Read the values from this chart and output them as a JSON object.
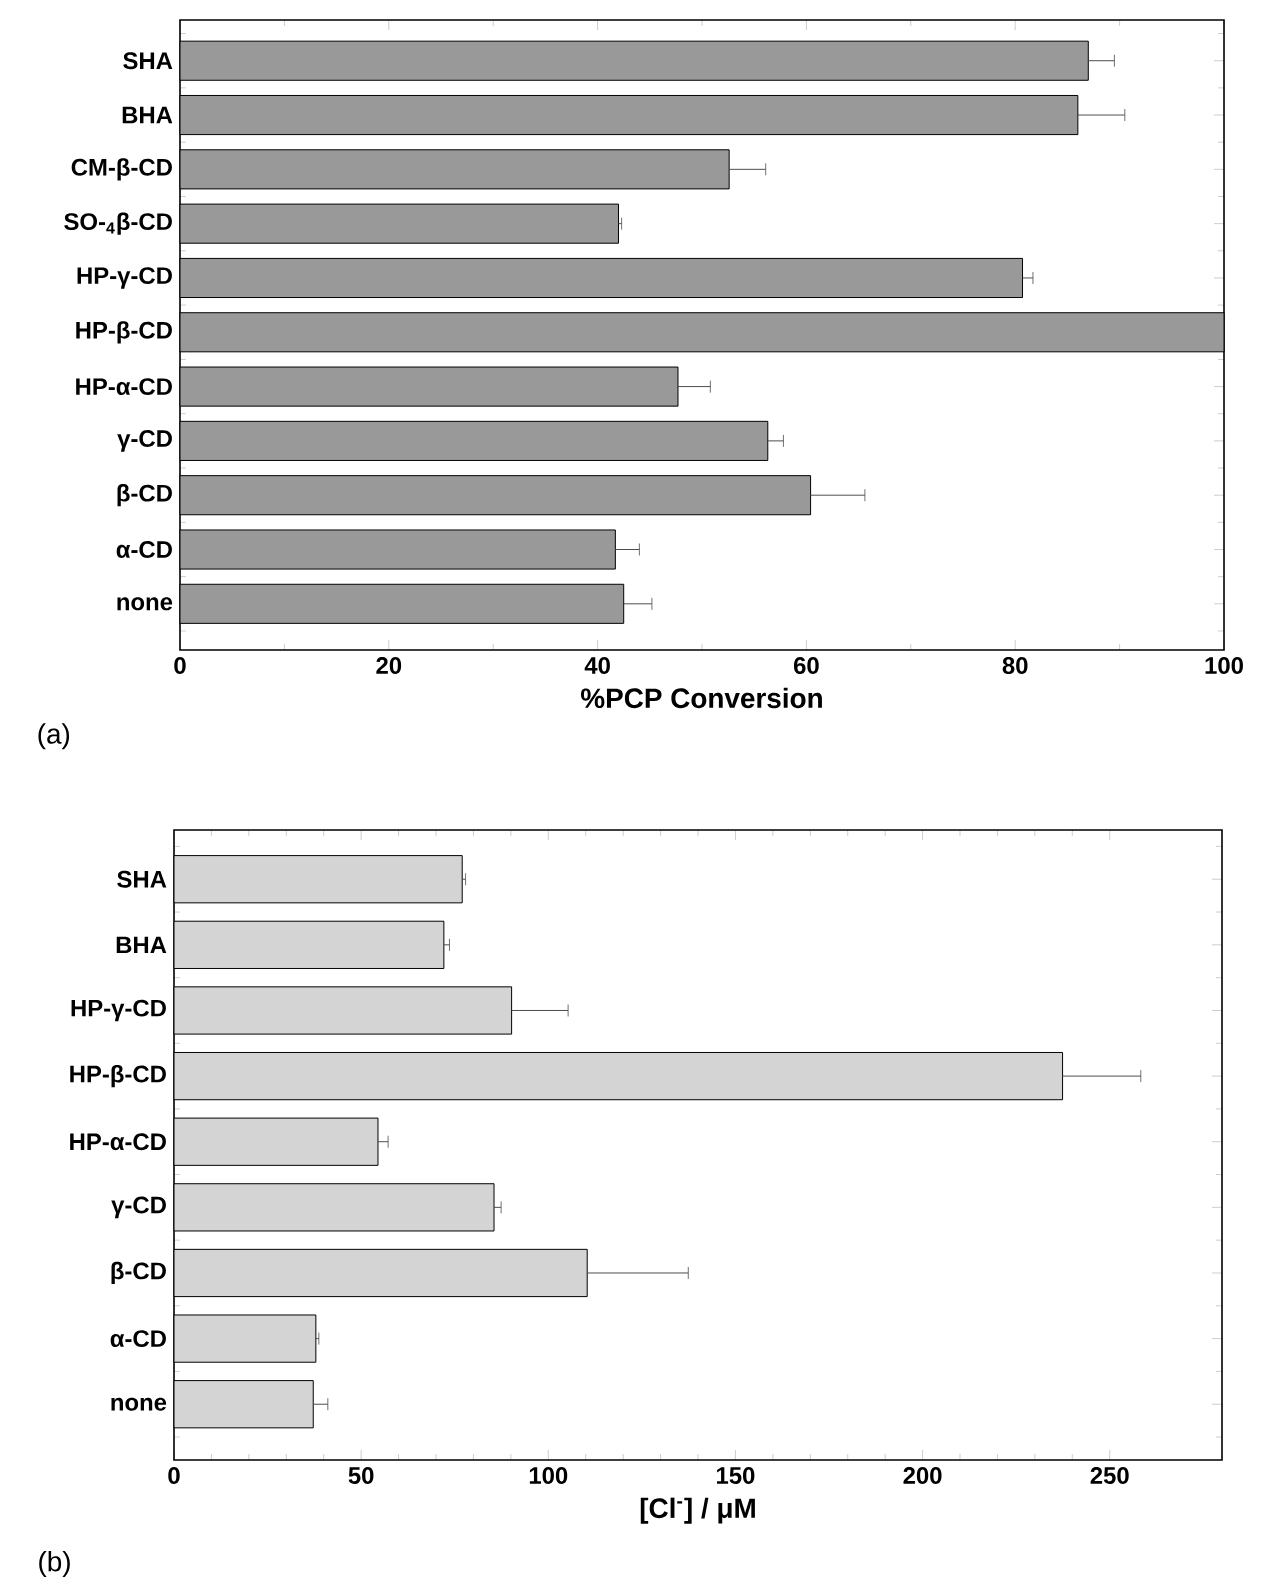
{
  "chart_data": [
    {
      "type": "bar",
      "orientation": "horizontal",
      "xlabel": "%PCP Conversion",
      "annotations": [
        "(a)"
      ],
      "categories": [
        "SHA",
        "BHA",
        "CM-β-CD",
        "SO-$_{4}$β-CD",
        "HP-γ-CD",
        "HP-β-CD",
        "HP-α-CD",
        "γ-CD",
        "β-CD",
        "α-CD",
        "none"
      ],
      "values": [
        87.0,
        86.0,
        52.6,
        42.0,
        80.7,
        100,
        47.7,
        56.3,
        60.4,
        41.7,
        42.5
      ],
      "errors": [
        [
          87.0,
          89.5
        ],
        [
          86.0,
          90.5
        ],
        [
          52.6,
          56.1
        ],
        [
          42.0,
          42.3
        ],
        [
          80.7,
          81.7
        ],
        null,
        [
          47.7,
          50.8
        ],
        [
          56.3,
          57.8
        ],
        [
          60.4,
          65.6
        ],
        [
          41.7,
          44.0
        ],
        [
          42.5,
          45.2
        ]
      ],
      "color": "#999999",
      "xlim": [
        0,
        100
      ],
      "xticks": [
        0,
        20,
        40,
        60,
        80,
        100
      ],
      "grid": false
    },
    {
      "type": "bar",
      "orientation": "horizontal",
      "xlabel": "[Cl$^{-}$] / μM",
      "annotations": [
        "(b)"
      ],
      "categories": [
        "SHA",
        "BHA",
        "HP-γ-CD",
        "HP-β-CD",
        "HP-α-CD",
        "γ-CD",
        "β-CD",
        "α-CD",
        "none"
      ],
      "values": [
        77.0,
        72.1,
        90.2,
        237.4,
        54.5,
        85.5,
        110.4,
        37.9,
        37.2
      ],
      "errors": [
        [
          77.0,
          77.9
        ],
        [
          72.1,
          73.6
        ],
        [
          90.2,
          105.3
        ],
        [
          237.4,
          258.3
        ],
        [
          54.5,
          57.2
        ],
        [
          85.5,
          87.4
        ],
        [
          110.4,
          137.4
        ],
        [
          37.9,
          38.7
        ],
        [
          37.2,
          41.1
        ]
      ],
      "color": "#d4d4d4",
      "xlim": [
        0,
        280
      ],
      "xticks": [
        0,
        50,
        100,
        150,
        200,
        250
      ],
      "grid": false
    }
  ]
}
